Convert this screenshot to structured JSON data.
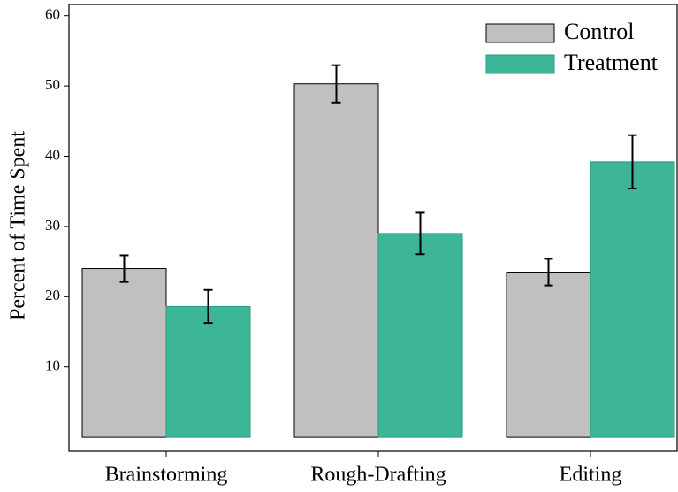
{
  "chart_data": {
    "type": "bar",
    "y_label": "Percent of Time Spent",
    "categories": [
      "Brainstorming",
      "Rough-Drafting",
      "Editing"
    ],
    "series": [
      {
        "name": "Control",
        "color": "#c0c0c0",
        "values": [
          24,
          50.3,
          23.5
        ],
        "errors": [
          1.9,
          2.65,
          1.9
        ]
      },
      {
        "name": "Treatment",
        "color": "#3db597",
        "values": [
          18.6,
          29,
          39.2
        ],
        "errors": [
          2.35,
          2.95,
          3.8
        ]
      }
    ],
    "ylim": [
      -2,
      61.6
    ],
    "yticks": [
      10,
      20,
      30,
      40,
      50,
      60
    ],
    "legend": "upper right"
  }
}
